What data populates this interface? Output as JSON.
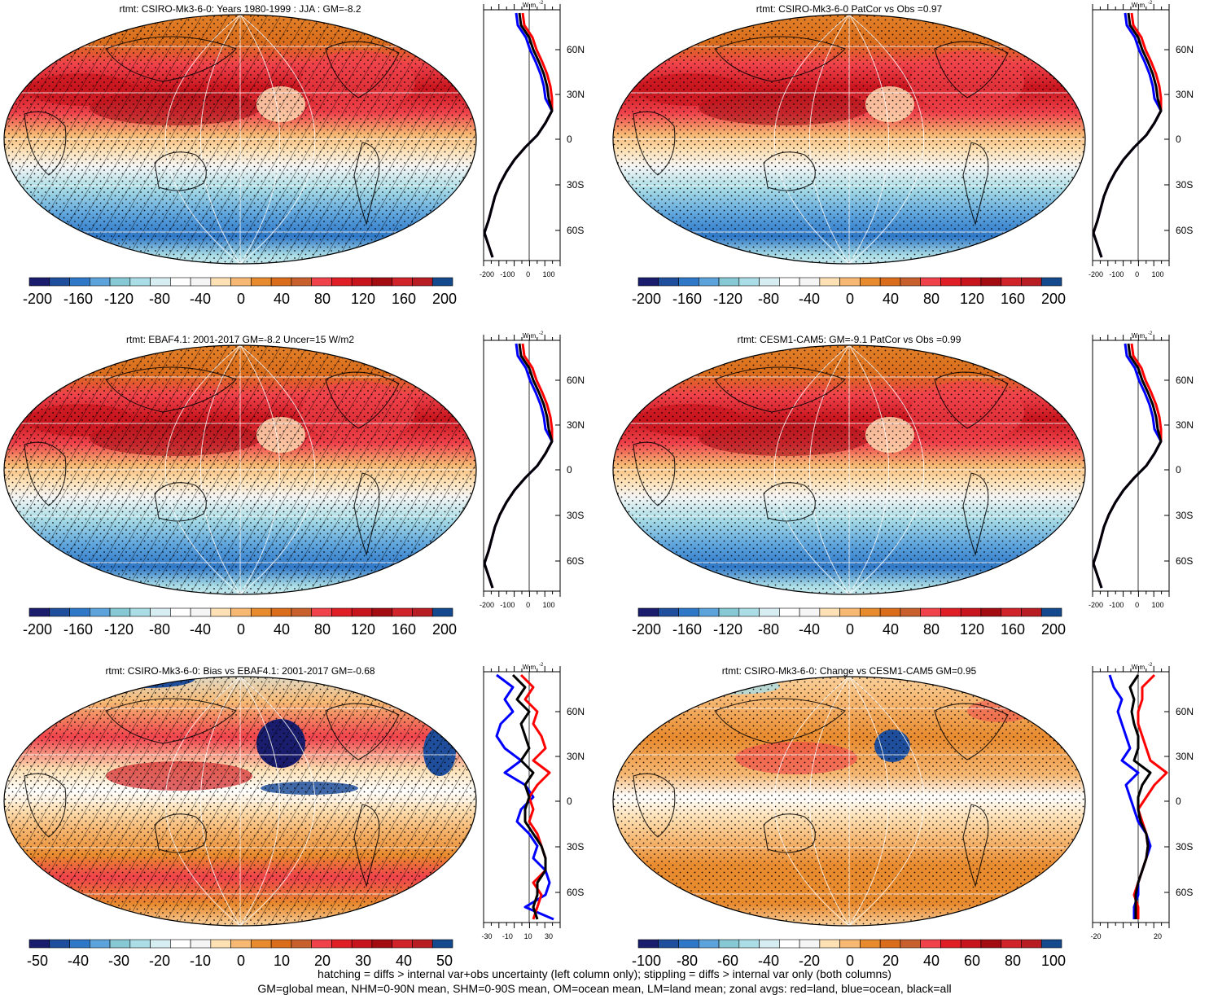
{
  "panels": [
    {
      "id": "p1",
      "title": "rtmt: CSIRO-Mk3-6-0: Years 1980-1999 : JJA : GM=-8.2",
      "colorbar_labels": [
        "-200",
        "-160",
        "-120",
        "-80",
        "-40",
        "0",
        "40",
        "80",
        "120",
        "160",
        "200"
      ],
      "zonal_ticks": [
        "-200",
        "-100",
        "0",
        "100"
      ],
      "pattern": "mean",
      "hatch": true
    },
    {
      "id": "p2",
      "title": "rtmt: CSIRO-Mk3-6-0 PatCor vs Obs =0.97",
      "colorbar_labels": [
        "-200",
        "-160",
        "-120",
        "-80",
        "-40",
        "0",
        "40",
        "80",
        "120",
        "160",
        "200"
      ],
      "zonal_ticks": [
        "-200",
        "-100",
        "0",
        "100"
      ],
      "pattern": "mean",
      "hatch": false
    },
    {
      "id": "p3",
      "title": "rtmt: EBAF4.1: 2001-2017 GM=-8.2 Uncer=15 W/m2",
      "colorbar_labels": [
        "-200",
        "-160",
        "-120",
        "-80",
        "-40",
        "0",
        "40",
        "80",
        "120",
        "160",
        "200"
      ],
      "zonal_ticks": [
        "-200",
        "-100",
        "0",
        "100"
      ],
      "pattern": "mean",
      "hatch": true
    },
    {
      "id": "p4",
      "title": "rtmt: CESM1-CAM5: GM=-9.1 PatCor vs Obs =0.99",
      "colorbar_labels": [
        "-200",
        "-160",
        "-120",
        "-80",
        "-40",
        "0",
        "40",
        "80",
        "120",
        "160",
        "200"
      ],
      "zonal_ticks": [
        "-200",
        "-100",
        "0",
        "100"
      ],
      "pattern": "mean",
      "hatch": false
    },
    {
      "id": "p5",
      "title": "rtmt: CSIRO-Mk3-6-0: Bias vs EBAF4.1: 2001-2017 GM=-0.68",
      "colorbar_labels": [
        "-50",
        "-40",
        "-30",
        "-20",
        "-10",
        "0",
        "10",
        "20",
        "30",
        "40",
        "50"
      ],
      "zonal_ticks": [
        "-30",
        "-10",
        "10",
        "30"
      ],
      "pattern": "bias",
      "hatch": true
    },
    {
      "id": "p6",
      "title": "rtmt: CSIRO-Mk3-6-0: Change vs CESM1-CAM5 GM=0.95",
      "colorbar_labels": [
        "-100",
        "-80",
        "-60",
        "-40",
        "-20",
        "0",
        "20",
        "40",
        "60",
        "80",
        "100"
      ],
      "zonal_ticks": [
        "-20",
        "20"
      ],
      "pattern": "change",
      "hatch": false
    }
  ],
  "lat_labels": [
    "60N",
    "30N",
    "0",
    "30S",
    "60S"
  ],
  "units_label": "W m",
  "units_exp": "-2",
  "palette": [
    "#1a1d6e",
    "#1f4f9c",
    "#2f78c8",
    "#5ca3dc",
    "#86c8d4",
    "#aadde6",
    "#d6eef2",
    "#ffffff",
    "#f5f5f5",
    "#fde0b4",
    "#f6b873",
    "#e88a2e",
    "#d96d1c",
    "#c8602e",
    "#f0424b",
    "#e01e25",
    "#c8141c",
    "#a30d12",
    "#d1232a",
    "#b81d24",
    "#15498d"
  ],
  "footer": {
    "line1": "hatching = diffs > internal var+obs uncertainty (left column only); stippling = diffs > internal var only (both columns)",
    "line2": "GM=global mean, NHM=0-90N mean, SHM=0-90S mean, OM=ocean mean, LM=land mean; zonal avgs: red=land, blue=ocean, black=all"
  }
}
